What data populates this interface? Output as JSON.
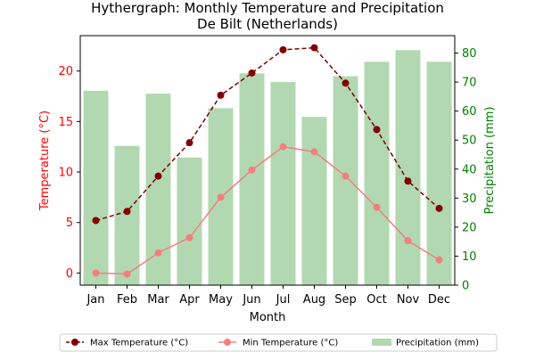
{
  "chart_data": {
    "type": "bar+line",
    "title_line1": "Hythergraph: Monthly Temperature and Precipitation",
    "title_line2": "De Bilt (Netherlands)",
    "xlabel": "Month",
    "ylabel_left": "Temperature (°C)",
    "ylabel_right": "Precipitation (mm)",
    "categories": [
      "Jan",
      "Feb",
      "Mar",
      "Apr",
      "May",
      "Jun",
      "Jul",
      "Aug",
      "Sep",
      "Oct",
      "Nov",
      "Dec"
    ],
    "y_left_lim": [
      -1.2,
      23.5
    ],
    "y_left_ticks": [
      0,
      5,
      10,
      15,
      20
    ],
    "y_right_lim": [
      0,
      86
    ],
    "y_right_ticks": [
      0,
      10,
      20,
      30,
      40,
      50,
      60,
      70,
      80
    ],
    "series": [
      {
        "name": "Max Temperature (°C)",
        "axis": "left",
        "kind": "line",
        "color": "#800000",
        "linestyle": "dashed",
        "values": [
          5.2,
          6.1,
          9.6,
          12.9,
          17.6,
          19.8,
          22.1,
          22.3,
          18.8,
          14.2,
          9.1,
          6.4
        ]
      },
      {
        "name": "Min Temperature (°C)",
        "axis": "left",
        "kind": "line",
        "color": "#f08080",
        "linestyle": "solid",
        "values": [
          0.0,
          -0.1,
          2.0,
          3.5,
          7.5,
          10.2,
          12.5,
          12.0,
          9.6,
          6.5,
          3.2,
          1.3
        ]
      },
      {
        "name": "Precipitation (mm)",
        "axis": "right",
        "kind": "bar",
        "color": "#b2d8b2",
        "values": [
          67,
          48,
          66,
          44,
          61,
          73,
          70,
          58,
          72,
          77,
          81,
          77
        ]
      }
    ],
    "legend_position": "bottom",
    "left_axis_color": "#ff0000",
    "right_axis_color": "#008000"
  }
}
